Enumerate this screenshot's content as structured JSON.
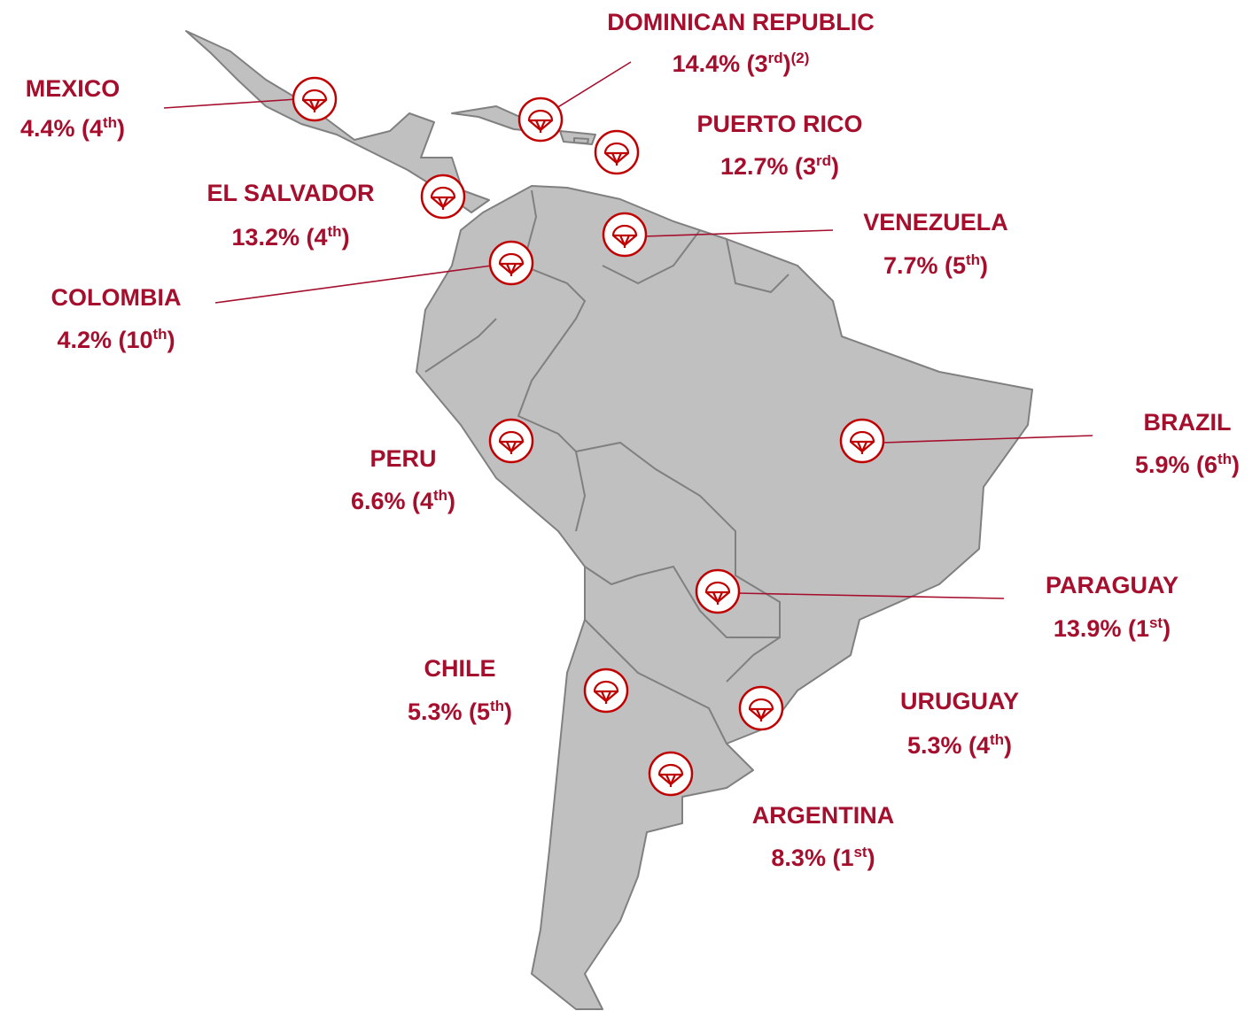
{
  "countries": [
    {
      "name": "MEXICO",
      "parts": [
        "4.4% (4",
        "th",
        ")"
      ]
    },
    {
      "name": "DOMINICAN REPUBLIC",
      "parts": [
        "14.4% (3",
        "rd",
        ")",
        "(2)"
      ]
    },
    {
      "name": "PUERTO RICO",
      "parts": [
        "12.7% (3",
        "rd",
        ")"
      ]
    },
    {
      "name": "EL SALVADOR",
      "parts": [
        "13.2% (4",
        "th",
        ")"
      ]
    },
    {
      "name": "VENEZUELA",
      "parts": [
        "7.7% (5",
        "th",
        ")"
      ]
    },
    {
      "name": "COLOMBIA",
      "parts": [
        "4.2% (10",
        "th",
        ")"
      ]
    },
    {
      "name": "PERU",
      "parts": [
        "6.6% (4",
        "th",
        ")"
      ]
    },
    {
      "name": "BRAZIL",
      "parts": [
        "5.9% (6",
        "th",
        ")"
      ]
    },
    {
      "name": "PARAGUAY",
      "parts": [
        "13.9% (1",
        "st",
        ")"
      ]
    },
    {
      "name": "CHILE",
      "parts": [
        "5.3% (5",
        "th",
        ")"
      ]
    },
    {
      "name": "URUGUAY",
      "parts": [
        "5.3% (4",
        "th",
        ")"
      ]
    },
    {
      "name": "ARGENTINA",
      "parts": [
        "8.3% (1",
        "st",
        ")"
      ]
    }
  ]
}
